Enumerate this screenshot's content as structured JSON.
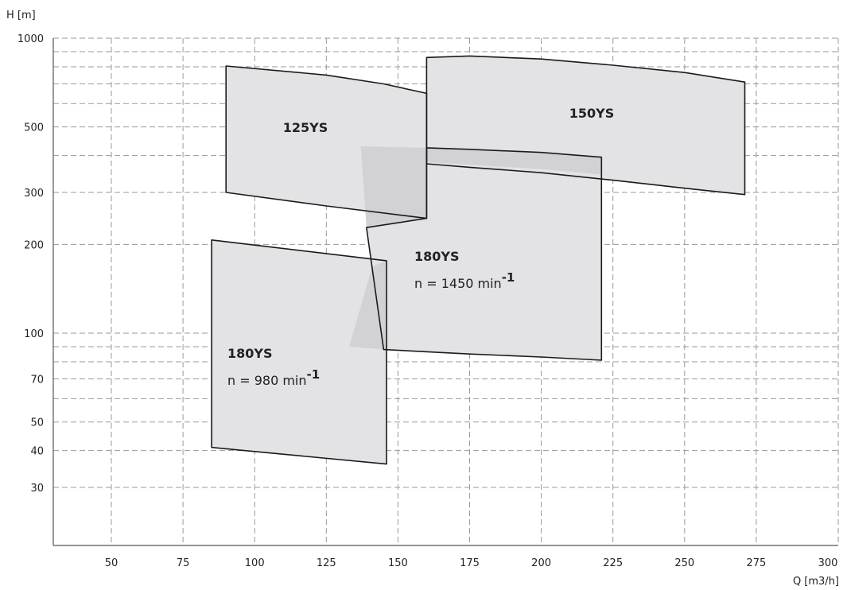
{
  "chart_data": {
    "type": "area",
    "title": "",
    "xlabel": "Q [m3/h]",
    "ylabel": "H [m]",
    "x_scale": "linear",
    "y_scale": "log",
    "xlim": [
      30,
      300
    ],
    "ylim": [
      20,
      1000
    ],
    "x_ticks": [
      50,
      75,
      100,
      125,
      150,
      175,
      200,
      225,
      250,
      275,
      300
    ],
    "x_tick_labels": [
      "50",
      "75",
      "100",
      "125",
      "150",
      "175",
      "200",
      "225",
      "250",
      "275",
      "300"
    ],
    "y_ticks": [
      30,
      40,
      50,
      70,
      100,
      200,
      300,
      500,
      1000
    ],
    "y_tick_labels": [
      "30",
      "40",
      "50",
      "70",
      "100",
      "200",
      "300",
      "500",
      "1000"
    ],
    "grid": true,
    "regions": [
      {
        "name": "150YS",
        "label": "150YS",
        "speed_text": "",
        "fill": "#e3e3e5",
        "polygon": [
          [
            160,
            860
          ],
          [
            175,
            870
          ],
          [
            200,
            850
          ],
          [
            225,
            810
          ],
          [
            250,
            765
          ],
          [
            271,
            710
          ],
          [
            271,
            295
          ],
          [
            250,
            310
          ],
          [
            225,
            330
          ],
          [
            200,
            350
          ],
          [
            175,
            365
          ],
          [
            160,
            375
          ]
        ]
      },
      {
        "name": "125YS",
        "label": "125YS",
        "speed_text": "",
        "fill": "#e3e3e5",
        "polygon": [
          [
            90,
            805
          ],
          [
            125,
            750
          ],
          [
            145,
            700
          ],
          [
            160,
            650
          ],
          [
            160,
            245
          ],
          [
            125,
            270
          ],
          [
            90,
            300
          ]
        ]
      },
      {
        "name": "180YS-1450",
        "label": "180YS",
        "speed_prefix": "n = 1450 min",
        "speed_exponent": "-1",
        "fill": "#e3e3e5",
        "polygon": [
          [
            160,
            425
          ],
          [
            175,
            420
          ],
          [
            200,
            410
          ],
          [
            221,
            395
          ],
          [
            221,
            81
          ],
          [
            200,
            83
          ],
          [
            175,
            85
          ],
          [
            145,
            88
          ],
          [
            139,
            228
          ],
          [
            160,
            245
          ]
        ]
      },
      {
        "name": "180YS-980",
        "label": "180YS",
        "speed_prefix": "n = 980 min",
        "speed_exponent": "-1",
        "fill": "#e3e3e5",
        "polygon": [
          [
            85,
            207
          ],
          [
            146,
            176
          ],
          [
            146,
            36
          ],
          [
            85,
            41
          ]
        ]
      }
    ],
    "overlap_shading": {
      "fill": "#d2d2d4",
      "polygons": [
        [
          [
            137,
            430
          ],
          [
            160,
            425
          ],
          [
            160,
            245
          ],
          [
            139,
            228
          ]
        ],
        [
          [
            160,
            380
          ],
          [
            175,
            372
          ],
          [
            200,
            360
          ],
          [
            221,
            345
          ],
          [
            221,
            395
          ],
          [
            200,
            410
          ],
          [
            175,
            420
          ],
          [
            160,
            425
          ]
        ],
        [
          [
            141,
            168
          ],
          [
            146,
            176
          ],
          [
            146,
            88
          ],
          [
            133,
            90
          ]
        ]
      ]
    },
    "colors": {
      "region_stroke": "#1a1a1a",
      "grid": "#9a9a9a",
      "axis": "#555555",
      "text": "#222222"
    }
  }
}
